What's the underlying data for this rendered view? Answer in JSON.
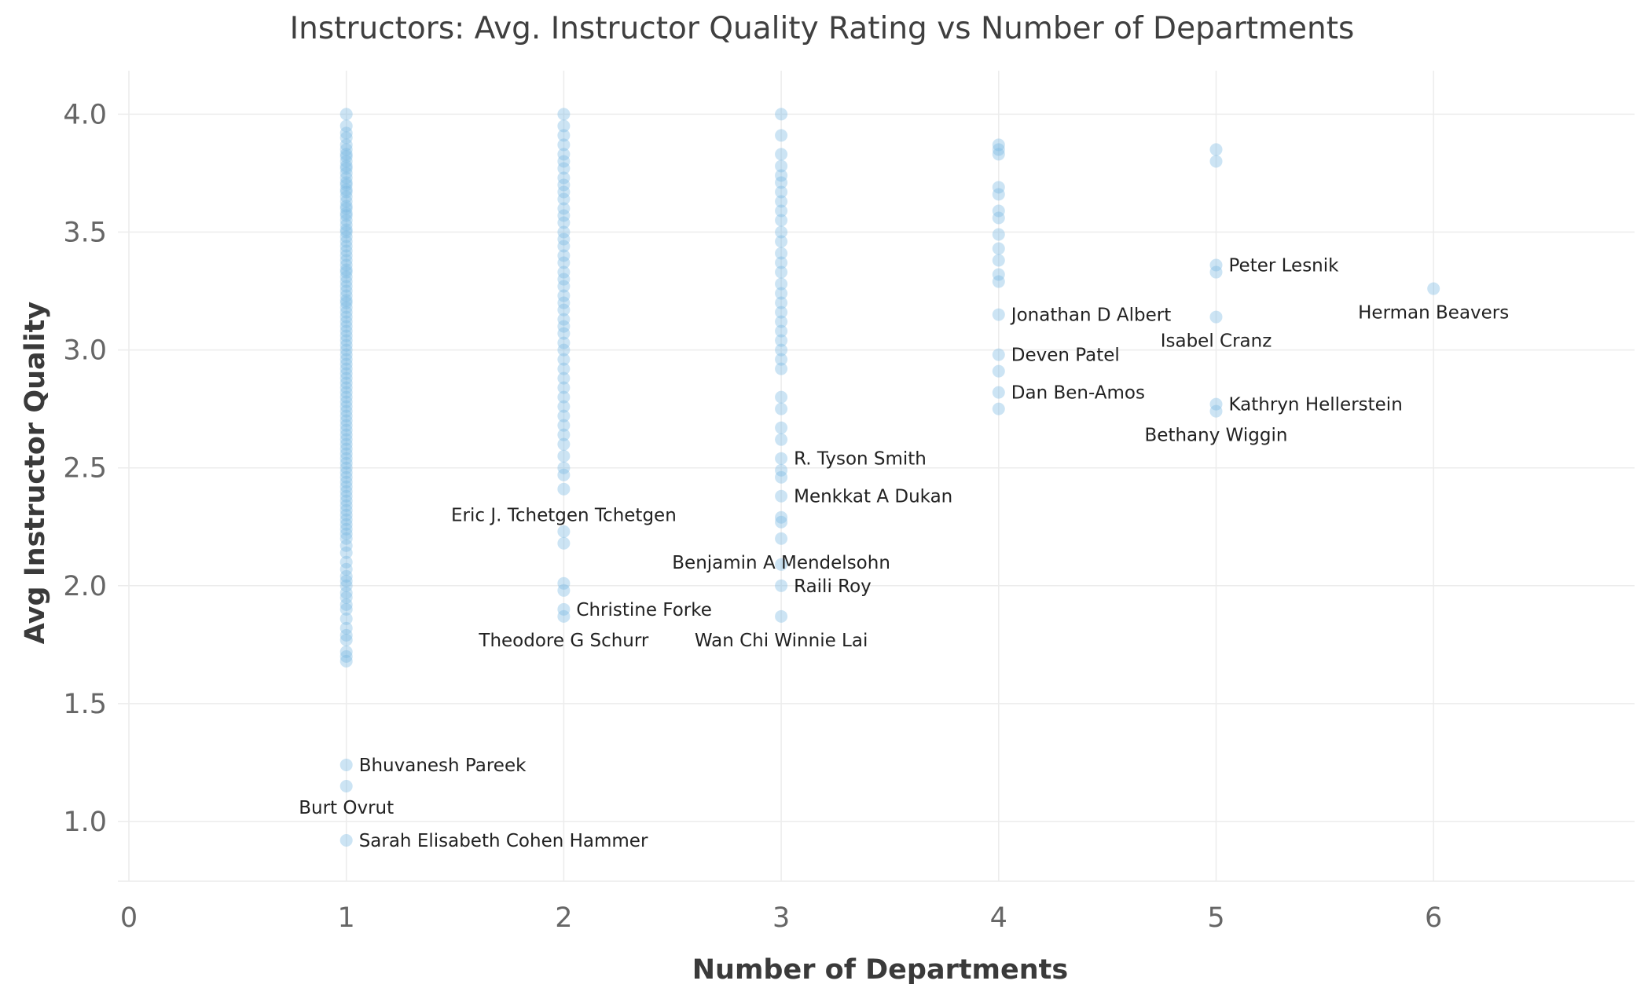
{
  "chart_data": {
    "type": "scatter",
    "title": "Instructors: Avg. Instructor Quality Rating vs Number of Departments",
    "xlabel": "Number of Departments",
    "ylabel": "Avg Instructor Quality",
    "xlim": [
      0,
      7
    ],
    "ylim": [
      0.75,
      4.2
    ],
    "xticks": [
      "0",
      "1",
      "2",
      "3",
      "4",
      "5",
      "6",
      "7"
    ],
    "yticks": [
      "1.0",
      "1.5",
      "2.0",
      "2.5",
      "3.0",
      "3.5",
      "4.0"
    ],
    "grid": true,
    "point_color": "#7ab8e3",
    "points": [
      {
        "x": 1,
        "y": 4.0
      },
      {
        "x": 1,
        "y": 3.95
      },
      {
        "x": 1,
        "y": 3.92
      },
      {
        "x": 1,
        "y": 3.9
      },
      {
        "x": 1,
        "y": 3.87
      },
      {
        "x": 1,
        "y": 3.85
      },
      {
        "x": 1,
        "y": 3.83
      },
      {
        "x": 1,
        "y": 3.82
      },
      {
        "x": 1,
        "y": 3.8
      },
      {
        "x": 1,
        "y": 3.78
      },
      {
        "x": 1,
        "y": 3.77
      },
      {
        "x": 1,
        "y": 3.75
      },
      {
        "x": 1,
        "y": 3.73
      },
      {
        "x": 1,
        "y": 3.71
      },
      {
        "x": 1,
        "y": 3.7
      },
      {
        "x": 1,
        "y": 3.68
      },
      {
        "x": 1,
        "y": 3.67
      },
      {
        "x": 1,
        "y": 3.65
      },
      {
        "x": 1,
        "y": 3.63
      },
      {
        "x": 1,
        "y": 3.61
      },
      {
        "x": 1,
        "y": 3.6
      },
      {
        "x": 1,
        "y": 3.58
      },
      {
        "x": 1,
        "y": 3.57
      },
      {
        "x": 1,
        "y": 3.55
      },
      {
        "x": 1,
        "y": 3.53
      },
      {
        "x": 1,
        "y": 3.51
      },
      {
        "x": 1,
        "y": 3.5
      },
      {
        "x": 1,
        "y": 3.48
      },
      {
        "x": 1,
        "y": 3.46
      },
      {
        "x": 1,
        "y": 3.44
      },
      {
        "x": 1,
        "y": 3.42
      },
      {
        "x": 1,
        "y": 3.4
      },
      {
        "x": 1,
        "y": 3.38
      },
      {
        "x": 1,
        "y": 3.36
      },
      {
        "x": 1,
        "y": 3.34
      },
      {
        "x": 1,
        "y": 3.33
      },
      {
        "x": 1,
        "y": 3.31
      },
      {
        "x": 1,
        "y": 3.29
      },
      {
        "x": 1,
        "y": 3.27
      },
      {
        "x": 1,
        "y": 3.25
      },
      {
        "x": 1,
        "y": 3.23
      },
      {
        "x": 1,
        "y": 3.21
      },
      {
        "x": 1,
        "y": 3.2
      },
      {
        "x": 1,
        "y": 3.18
      },
      {
        "x": 1,
        "y": 3.16
      },
      {
        "x": 1,
        "y": 3.14
      },
      {
        "x": 1,
        "y": 3.12
      },
      {
        "x": 1,
        "y": 3.1
      },
      {
        "x": 1,
        "y": 3.08
      },
      {
        "x": 1,
        "y": 3.06
      },
      {
        "x": 1,
        "y": 3.04
      },
      {
        "x": 1,
        "y": 3.02
      },
      {
        "x": 1,
        "y": 3.0
      },
      {
        "x": 1,
        "y": 2.98
      },
      {
        "x": 1,
        "y": 2.96
      },
      {
        "x": 1,
        "y": 2.94
      },
      {
        "x": 1,
        "y": 2.92
      },
      {
        "x": 1,
        "y": 2.9
      },
      {
        "x": 1,
        "y": 2.88
      },
      {
        "x": 1,
        "y": 2.86
      },
      {
        "x": 1,
        "y": 2.84
      },
      {
        "x": 1,
        "y": 2.82
      },
      {
        "x": 1,
        "y": 2.8
      },
      {
        "x": 1,
        "y": 2.78
      },
      {
        "x": 1,
        "y": 2.76
      },
      {
        "x": 1,
        "y": 2.74
      },
      {
        "x": 1,
        "y": 2.72
      },
      {
        "x": 1,
        "y": 2.7
      },
      {
        "x": 1,
        "y": 2.68
      },
      {
        "x": 1,
        "y": 2.66
      },
      {
        "x": 1,
        "y": 2.64
      },
      {
        "x": 1,
        "y": 2.62
      },
      {
        "x": 1,
        "y": 2.6
      },
      {
        "x": 1,
        "y": 2.58
      },
      {
        "x": 1,
        "y": 2.56
      },
      {
        "x": 1,
        "y": 2.54
      },
      {
        "x": 1,
        "y": 2.52
      },
      {
        "x": 1,
        "y": 2.5
      },
      {
        "x": 1,
        "y": 2.48
      },
      {
        "x": 1,
        "y": 2.46
      },
      {
        "x": 1,
        "y": 2.44
      },
      {
        "x": 1,
        "y": 2.42
      },
      {
        "x": 1,
        "y": 2.4
      },
      {
        "x": 1,
        "y": 2.38
      },
      {
        "x": 1,
        "y": 2.36
      },
      {
        "x": 1,
        "y": 2.34
      },
      {
        "x": 1,
        "y": 2.32
      },
      {
        "x": 1,
        "y": 2.3
      },
      {
        "x": 1,
        "y": 2.28
      },
      {
        "x": 1,
        "y": 2.26
      },
      {
        "x": 1,
        "y": 2.24
      },
      {
        "x": 1,
        "y": 2.22
      },
      {
        "x": 1,
        "y": 2.2
      },
      {
        "x": 1,
        "y": 2.17
      },
      {
        "x": 1,
        "y": 2.14
      },
      {
        "x": 1,
        "y": 2.1
      },
      {
        "x": 1,
        "y": 2.07
      },
      {
        "x": 1,
        "y": 2.04
      },
      {
        "x": 1,
        "y": 2.02
      },
      {
        "x": 1,
        "y": 2.0
      },
      {
        "x": 1,
        "y": 1.97
      },
      {
        "x": 1,
        "y": 1.95
      },
      {
        "x": 1,
        "y": 1.92
      },
      {
        "x": 1,
        "y": 1.9
      },
      {
        "x": 1,
        "y": 1.86
      },
      {
        "x": 1,
        "y": 1.82
      },
      {
        "x": 1,
        "y": 1.79
      },
      {
        "x": 1,
        "y": 1.77
      },
      {
        "x": 1,
        "y": 1.72
      },
      {
        "x": 1,
        "y": 1.7
      },
      {
        "x": 1,
        "y": 1.68
      },
      {
        "x": 1,
        "y": 1.24
      },
      {
        "x": 1,
        "y": 1.15
      },
      {
        "x": 1,
        "y": 0.92
      },
      {
        "x": 2,
        "y": 4.0
      },
      {
        "x": 2,
        "y": 3.95
      },
      {
        "x": 2,
        "y": 3.91
      },
      {
        "x": 2,
        "y": 3.87
      },
      {
        "x": 2,
        "y": 3.83
      },
      {
        "x": 2,
        "y": 3.8
      },
      {
        "x": 2,
        "y": 3.77
      },
      {
        "x": 2,
        "y": 3.73
      },
      {
        "x": 2,
        "y": 3.7
      },
      {
        "x": 2,
        "y": 3.67
      },
      {
        "x": 2,
        "y": 3.64
      },
      {
        "x": 2,
        "y": 3.6
      },
      {
        "x": 2,
        "y": 3.57
      },
      {
        "x": 2,
        "y": 3.54
      },
      {
        "x": 2,
        "y": 3.5
      },
      {
        "x": 2,
        "y": 3.47
      },
      {
        "x": 2,
        "y": 3.44
      },
      {
        "x": 2,
        "y": 3.4
      },
      {
        "x": 2,
        "y": 3.37
      },
      {
        "x": 2,
        "y": 3.33
      },
      {
        "x": 2,
        "y": 3.3
      },
      {
        "x": 2,
        "y": 3.27
      },
      {
        "x": 2,
        "y": 3.23
      },
      {
        "x": 2,
        "y": 3.2
      },
      {
        "x": 2,
        "y": 3.17
      },
      {
        "x": 2,
        "y": 3.13
      },
      {
        "x": 2,
        "y": 3.1
      },
      {
        "x": 2,
        "y": 3.07
      },
      {
        "x": 2,
        "y": 3.03
      },
      {
        "x": 2,
        "y": 3.0
      },
      {
        "x": 2,
        "y": 2.96
      },
      {
        "x": 2,
        "y": 2.92
      },
      {
        "x": 2,
        "y": 2.88
      },
      {
        "x": 2,
        "y": 2.84
      },
      {
        "x": 2,
        "y": 2.8
      },
      {
        "x": 2,
        "y": 2.76
      },
      {
        "x": 2,
        "y": 2.72
      },
      {
        "x": 2,
        "y": 2.68
      },
      {
        "x": 2,
        "y": 2.64
      },
      {
        "x": 2,
        "y": 2.6
      },
      {
        "x": 2,
        "y": 2.55
      },
      {
        "x": 2,
        "y": 2.5
      },
      {
        "x": 2,
        "y": 2.47
      },
      {
        "x": 2,
        "y": 2.41
      },
      {
        "x": 2,
        "y": 2.23
      },
      {
        "x": 2,
        "y": 2.18
      },
      {
        "x": 2,
        "y": 2.01
      },
      {
        "x": 2,
        "y": 1.98
      },
      {
        "x": 2,
        "y": 1.9
      },
      {
        "x": 2,
        "y": 1.87
      },
      {
        "x": 3,
        "y": 4.0
      },
      {
        "x": 3,
        "y": 3.91
      },
      {
        "x": 3,
        "y": 3.83
      },
      {
        "x": 3,
        "y": 3.78
      },
      {
        "x": 3,
        "y": 3.74
      },
      {
        "x": 3,
        "y": 3.71
      },
      {
        "x": 3,
        "y": 3.67
      },
      {
        "x": 3,
        "y": 3.63
      },
      {
        "x": 3,
        "y": 3.59
      },
      {
        "x": 3,
        "y": 3.55
      },
      {
        "x": 3,
        "y": 3.5
      },
      {
        "x": 3,
        "y": 3.46
      },
      {
        "x": 3,
        "y": 3.41
      },
      {
        "x": 3,
        "y": 3.37
      },
      {
        "x": 3,
        "y": 3.33
      },
      {
        "x": 3,
        "y": 3.28
      },
      {
        "x": 3,
        "y": 3.24
      },
      {
        "x": 3,
        "y": 3.2
      },
      {
        "x": 3,
        "y": 3.16
      },
      {
        "x": 3,
        "y": 3.12
      },
      {
        "x": 3,
        "y": 3.08
      },
      {
        "x": 3,
        "y": 3.04
      },
      {
        "x": 3,
        "y": 3.0
      },
      {
        "x": 3,
        "y": 2.96
      },
      {
        "x": 3,
        "y": 2.92
      },
      {
        "x": 3,
        "y": 2.8
      },
      {
        "x": 3,
        "y": 2.75
      },
      {
        "x": 3,
        "y": 2.67
      },
      {
        "x": 3,
        "y": 2.62
      },
      {
        "x": 3,
        "y": 2.54
      },
      {
        "x": 3,
        "y": 2.49
      },
      {
        "x": 3,
        "y": 2.46
      },
      {
        "x": 3,
        "y": 2.38
      },
      {
        "x": 3,
        "y": 2.29
      },
      {
        "x": 3,
        "y": 2.27
      },
      {
        "x": 3,
        "y": 2.2
      },
      {
        "x": 3,
        "y": 2.09
      },
      {
        "x": 3,
        "y": 2.0
      },
      {
        "x": 3,
        "y": 1.87
      },
      {
        "x": 4,
        "y": 3.87
      },
      {
        "x": 4,
        "y": 3.85
      },
      {
        "x": 4,
        "y": 3.83
      },
      {
        "x": 4,
        "y": 3.69
      },
      {
        "x": 4,
        "y": 3.66
      },
      {
        "x": 4,
        "y": 3.59
      },
      {
        "x": 4,
        "y": 3.56
      },
      {
        "x": 4,
        "y": 3.49
      },
      {
        "x": 4,
        "y": 3.43
      },
      {
        "x": 4,
        "y": 3.38
      },
      {
        "x": 4,
        "y": 3.32
      },
      {
        "x": 4,
        "y": 3.29
      },
      {
        "x": 4,
        "y": 3.15
      },
      {
        "x": 4,
        "y": 2.98
      },
      {
        "x": 4,
        "y": 2.91
      },
      {
        "x": 4,
        "y": 2.82
      },
      {
        "x": 4,
        "y": 2.75
      },
      {
        "x": 5,
        "y": 3.85
      },
      {
        "x": 5,
        "y": 3.8
      },
      {
        "x": 5,
        "y": 3.36
      },
      {
        "x": 5,
        "y": 3.33
      },
      {
        "x": 5,
        "y": 3.14
      },
      {
        "x": 5,
        "y": 2.77
      },
      {
        "x": 5,
        "y": 2.74
      },
      {
        "x": 6,
        "y": 3.26
      }
    ],
    "annotations": [
      {
        "text": "Bhuvanesh Pareek",
        "x": 1,
        "y": 1.24,
        "align": "right"
      },
      {
        "text": "Burt Ovrut",
        "x": 1,
        "y": 1.06,
        "align": "center"
      },
      {
        "text": "Sarah Elisabeth Cohen Hammer",
        "x": 1,
        "y": 0.92,
        "align": "right"
      },
      {
        "text": "Eric J. Tchetgen Tchetgen",
        "x": 2,
        "y": 2.3,
        "align": "center"
      },
      {
        "text": "Christine Forke",
        "x": 2,
        "y": 1.9,
        "align": "right"
      },
      {
        "text": "Theodore G Schurr",
        "x": 2,
        "y": 1.77,
        "align": "center"
      },
      {
        "text": "R. Tyson Smith",
        "x": 3,
        "y": 2.54,
        "align": "right"
      },
      {
        "text": "Menkkat A Dukan",
        "x": 3,
        "y": 2.38,
        "align": "right"
      },
      {
        "text": "Benjamin A Mendelsohn",
        "x": 3,
        "y": 2.1,
        "align": "center"
      },
      {
        "text": "Raili Roy",
        "x": 3,
        "y": 2.0,
        "align": "right"
      },
      {
        "text": "Wan Chi Winnie Lai",
        "x": 3,
        "y": 1.77,
        "align": "center"
      },
      {
        "text": "Jonathan D Albert",
        "x": 4,
        "y": 3.15,
        "align": "right"
      },
      {
        "text": "Deven Patel",
        "x": 4,
        "y": 2.98,
        "align": "right"
      },
      {
        "text": "Dan Ben-Amos",
        "x": 4,
        "y": 2.82,
        "align": "right"
      },
      {
        "text": "Peter Lesnik",
        "x": 5,
        "y": 3.36,
        "align": "right"
      },
      {
        "text": "Isabel Cranz",
        "x": 5,
        "y": 3.04,
        "align": "center"
      },
      {
        "text": "Kathryn Hellerstein",
        "x": 5,
        "y": 2.77,
        "align": "right"
      },
      {
        "text": "Bethany Wiggin",
        "x": 5,
        "y": 2.64,
        "align": "center"
      },
      {
        "text": "Herman Beavers",
        "x": 6,
        "y": 3.16,
        "align": "center"
      }
    ]
  }
}
